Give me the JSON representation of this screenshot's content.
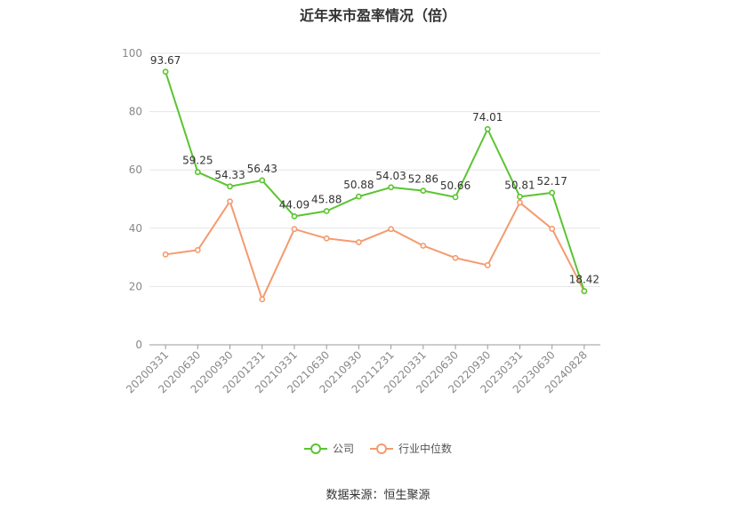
{
  "chart_data": {
    "type": "line",
    "title": "近年来市盈率情况（倍）",
    "categories": [
      "20200331",
      "20200630",
      "20200930",
      "20201231",
      "20210331",
      "20210630",
      "20210930",
      "20211231",
      "20220331",
      "20220630",
      "20220930",
      "20230331",
      "20230630",
      "20240828"
    ],
    "series": [
      {
        "name": "公司",
        "color": "#5ac431",
        "values": [
          93.67,
          59.25,
          54.33,
          56.43,
          44.09,
          45.88,
          50.88,
          54.03,
          52.86,
          50.66,
          74.01,
          50.81,
          52.17,
          18.42
        ],
        "labels": [
          "93.67",
          "59.25",
          "54.33",
          "56.43",
          "44.09",
          "45.88",
          "50.88",
          "54.03",
          "52.86",
          "50.66",
          "74.01",
          "50.81",
          "52.17",
          "18.42"
        ]
      },
      {
        "name": "行业中位数",
        "color": "#f59a6e",
        "values": [
          31.0,
          32.5,
          49.2,
          15.6,
          39.7,
          36.5,
          35.2,
          39.7,
          34.0,
          29.8,
          27.3,
          48.8,
          39.8,
          18.4
        ]
      }
    ],
    "ylim": [
      0,
      100
    ],
    "yticks": [
      0,
      20,
      40,
      60,
      80,
      100
    ],
    "grid": true,
    "legend_position": "bottom"
  },
  "source_text": "数据来源：恒生聚源"
}
